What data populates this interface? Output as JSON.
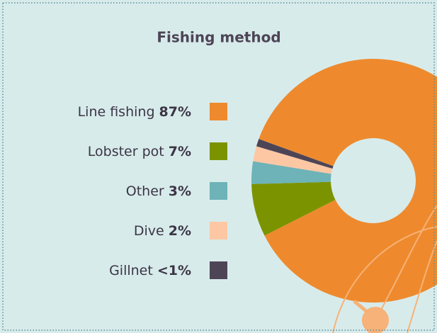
{
  "chart_data": {
    "type": "donut",
    "title": "Fishing method",
    "categories": [
      "Line fishing",
      "Lobster pot",
      "Other",
      "Dive",
      "Gillnet"
    ],
    "values": [
      87,
      7,
      3,
      2,
      1
    ],
    "value_labels": [
      "87%",
      "7%",
      "3%",
      "2%",
      "<1%"
    ],
    "colors": [
      "#ee8a2d",
      "#7c9300",
      "#6db3b7",
      "#fec7a3",
      "#4d4556"
    ]
  }
}
